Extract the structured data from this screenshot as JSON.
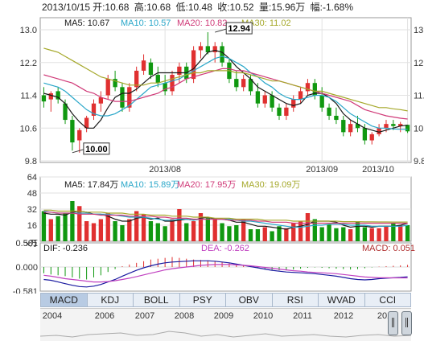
{
  "header": {
    "date": "2013/10/15",
    "open": "开:10.68",
    "high": "高:10.68",
    "low": "低:10.48",
    "close": "收:10.52",
    "volume": "量:15.96万",
    "change": "幅:-1.68%"
  },
  "tabs": [
    "MACD",
    "KDJ",
    "BOLL",
    "PSY",
    "OBV",
    "RSI",
    "WVAD",
    "CCI"
  ],
  "active_tab": "MACD",
  "timeline_years": [
    "2004",
    "2006",
    "2007",
    "2008",
    "2009",
    "2010",
    "2011",
    "2012",
    "201"
  ],
  "colors": {
    "up": "#e03030",
    "down": "#109810",
    "ma5": "#1a1a1a",
    "ma10": "#2aa7c9",
    "ma20": "#d03a78",
    "ma30": "#a5a82a",
    "dif": "#1a1aa0",
    "dea": "#c040c0"
  },
  "chart_data": [
    {
      "type": "candlestick",
      "title": "",
      "y_ticks_left": [
        "13.0",
        "12.2",
        "11.4",
        "10.6",
        "9.8"
      ],
      "y_ticks_right": [
        "13.0",
        "12.2",
        "11.4",
        "10.6",
        "9.8"
      ],
      "ylim": [
        9.8,
        13.0
      ],
      "x_tick_labels": [
        "2013/08",
        "2013/09",
        "2013/10"
      ],
      "legend": [
        {
          "name": "MA5",
          "value": "10.67"
        },
        {
          "name": "MA10",
          "value": "10.57"
        },
        {
          "name": "MA20",
          "value": "10.82"
        },
        {
          "name": "MA30",
          "value": "11.02"
        }
      ],
      "annotations": [
        {
          "label": "12.94",
          "x": 24,
          "y": 12.94
        },
        {
          "label": "10.00",
          "x": 4,
          "y": 10.0
        }
      ],
      "candles": [
        {
          "o": 11.4,
          "h": 11.6,
          "l": 11.1,
          "c": 11.25
        },
        {
          "o": 11.3,
          "h": 11.5,
          "l": 11.0,
          "c": 11.45
        },
        {
          "o": 11.5,
          "h": 11.6,
          "l": 11.2,
          "c": 11.3
        },
        {
          "o": 11.2,
          "h": 11.3,
          "l": 10.7,
          "c": 10.8
        },
        {
          "o": 10.8,
          "h": 10.9,
          "l": 10.05,
          "c": 10.25
        },
        {
          "o": 10.3,
          "h": 10.6,
          "l": 10.0,
          "c": 10.55
        },
        {
          "o": 10.6,
          "h": 10.9,
          "l": 10.5,
          "c": 10.85
        },
        {
          "o": 10.9,
          "h": 11.3,
          "l": 10.8,
          "c": 11.2
        },
        {
          "o": 11.2,
          "h": 11.5,
          "l": 11.0,
          "c": 11.35
        },
        {
          "o": 11.4,
          "h": 11.9,
          "l": 11.3,
          "c": 11.8
        },
        {
          "o": 11.8,
          "h": 12.0,
          "l": 11.5,
          "c": 11.6
        },
        {
          "o": 11.6,
          "h": 11.7,
          "l": 11.0,
          "c": 11.1
        },
        {
          "o": 11.1,
          "h": 11.7,
          "l": 11.0,
          "c": 11.6
        },
        {
          "o": 11.6,
          "h": 12.1,
          "l": 11.5,
          "c": 12.0
        },
        {
          "o": 12.0,
          "h": 12.4,
          "l": 11.9,
          "c": 12.25
        },
        {
          "o": 12.2,
          "h": 12.3,
          "l": 11.8,
          "c": 11.9
        },
        {
          "o": 11.9,
          "h": 12.1,
          "l": 11.6,
          "c": 11.7
        },
        {
          "o": 11.7,
          "h": 11.9,
          "l": 11.4,
          "c": 11.5
        },
        {
          "o": 11.5,
          "h": 12.0,
          "l": 11.4,
          "c": 11.9
        },
        {
          "o": 11.9,
          "h": 12.2,
          "l": 11.7,
          "c": 12.1
        },
        {
          "o": 12.1,
          "h": 12.2,
          "l": 11.7,
          "c": 11.8
        },
        {
          "o": 11.8,
          "h": 12.6,
          "l": 11.7,
          "c": 12.5
        },
        {
          "o": 12.5,
          "h": 12.7,
          "l": 12.3,
          "c": 12.6
        },
        {
          "o": 12.6,
          "h": 12.94,
          "l": 12.4,
          "c": 12.45
        },
        {
          "o": 12.45,
          "h": 12.7,
          "l": 12.2,
          "c": 12.6
        },
        {
          "o": 12.6,
          "h": 12.7,
          "l": 12.1,
          "c": 12.2
        },
        {
          "o": 12.2,
          "h": 12.3,
          "l": 11.7,
          "c": 11.8
        },
        {
          "o": 11.8,
          "h": 12.0,
          "l": 11.5,
          "c": 11.6
        },
        {
          "o": 11.6,
          "h": 11.9,
          "l": 11.5,
          "c": 11.8
        },
        {
          "o": 11.8,
          "h": 11.9,
          "l": 11.4,
          "c": 11.5
        },
        {
          "o": 11.5,
          "h": 11.7,
          "l": 11.1,
          "c": 11.2
        },
        {
          "o": 11.2,
          "h": 11.5,
          "l": 11.1,
          "c": 11.4
        },
        {
          "o": 11.4,
          "h": 11.5,
          "l": 11.0,
          "c": 11.1
        },
        {
          "o": 11.1,
          "h": 11.2,
          "l": 10.8,
          "c": 10.9
        },
        {
          "o": 10.9,
          "h": 11.2,
          "l": 10.8,
          "c": 11.1
        },
        {
          "o": 11.1,
          "h": 11.4,
          "l": 11.0,
          "c": 11.3
        },
        {
          "o": 11.3,
          "h": 11.6,
          "l": 11.2,
          "c": 11.5
        },
        {
          "o": 11.5,
          "h": 11.8,
          "l": 11.4,
          "c": 11.7
        },
        {
          "o": 11.7,
          "h": 11.8,
          "l": 11.3,
          "c": 11.4
        },
        {
          "o": 11.4,
          "h": 11.6,
          "l": 11.0,
          "c": 11.1
        },
        {
          "o": 11.1,
          "h": 11.2,
          "l": 10.8,
          "c": 10.9
        },
        {
          "o": 10.9,
          "h": 11.1,
          "l": 10.7,
          "c": 10.8
        },
        {
          "o": 10.8,
          "h": 10.9,
          "l": 10.4,
          "c": 10.5
        },
        {
          "o": 10.5,
          "h": 10.8,
          "l": 10.4,
          "c": 10.7
        },
        {
          "o": 10.7,
          "h": 10.9,
          "l": 10.5,
          "c": 10.6
        },
        {
          "o": 10.6,
          "h": 10.7,
          "l": 10.2,
          "c": 10.3
        },
        {
          "o": 10.3,
          "h": 10.5,
          "l": 10.2,
          "c": 10.45
        },
        {
          "o": 10.45,
          "h": 10.7,
          "l": 10.4,
          "c": 10.6
        },
        {
          "o": 10.6,
          "h": 10.8,
          "l": 10.5,
          "c": 10.7
        },
        {
          "o": 10.7,
          "h": 10.8,
          "l": 10.55,
          "c": 10.65
        },
        {
          "o": 10.65,
          "h": 10.75,
          "l": 10.5,
          "c": 10.7
        },
        {
          "o": 10.68,
          "h": 10.68,
          "l": 10.48,
          "c": 10.52
        }
      ],
      "ma_series": [
        {
          "name": "MA5",
          "values": [
            11.45,
            11.4,
            11.35,
            11.2,
            10.95,
            10.75,
            10.6,
            10.6,
            10.8,
            11.1,
            11.35,
            11.45,
            11.45,
            11.55,
            11.7,
            11.85,
            11.95,
            11.95,
            11.95,
            11.95,
            11.95,
            12.05,
            12.25,
            12.45,
            12.5,
            12.45,
            12.3,
            12.1,
            11.95,
            11.8,
            11.6,
            11.5,
            11.4,
            11.3,
            11.2,
            11.15,
            11.2,
            11.4,
            11.45,
            11.45,
            11.35,
            11.2,
            10.95,
            10.8,
            10.7,
            10.6,
            10.55,
            10.5,
            10.55,
            10.6,
            10.65,
            10.67
          ]
        },
        {
          "name": "MA10",
          "values": [
            11.7,
            11.65,
            11.6,
            11.5,
            11.35,
            11.2,
            11.05,
            10.95,
            10.9,
            10.9,
            10.95,
            11.05,
            11.15,
            11.3,
            11.45,
            11.6,
            11.65,
            11.7,
            11.75,
            11.8,
            11.9,
            12.0,
            12.1,
            12.2,
            12.3,
            12.35,
            12.3,
            12.2,
            12.1,
            11.95,
            11.85,
            11.7,
            11.6,
            11.45,
            11.35,
            11.3,
            11.3,
            11.35,
            11.4,
            11.4,
            11.35,
            11.25,
            11.1,
            10.95,
            10.85,
            10.75,
            10.65,
            10.6,
            10.6,
            10.58,
            10.57,
            10.57
          ]
        },
        {
          "name": "MA20",
          "values": [
            11.9,
            11.85,
            11.8,
            11.75,
            11.7,
            11.6,
            11.5,
            11.45,
            11.35,
            11.3,
            11.25,
            11.25,
            11.25,
            11.3,
            11.35,
            11.4,
            11.45,
            11.55,
            11.6,
            11.7,
            11.8,
            11.85,
            11.9,
            11.95,
            12.0,
            12.05,
            12.05,
            12.0,
            12.0,
            11.95,
            11.9,
            11.85,
            11.8,
            11.75,
            11.7,
            11.65,
            11.6,
            11.55,
            11.5,
            11.45,
            11.4,
            11.35,
            11.3,
            11.25,
            11.15,
            11.05,
            11.0,
            10.95,
            10.9,
            10.87,
            10.84,
            10.82
          ]
        },
        {
          "name": "MA30",
          "values": [
            12.55,
            12.5,
            12.45,
            12.35,
            12.25,
            12.15,
            12.05,
            11.95,
            11.85,
            11.8,
            11.75,
            11.7,
            11.65,
            11.65,
            11.65,
            11.7,
            11.7,
            11.75,
            11.8,
            11.85,
            11.9,
            11.95,
            11.95,
            12.0,
            12.0,
            12.0,
            12.0,
            11.95,
            11.95,
            11.9,
            11.85,
            11.8,
            11.75,
            11.75,
            11.7,
            11.65,
            11.6,
            11.55,
            11.5,
            11.5,
            11.45,
            11.4,
            11.35,
            11.3,
            11.25,
            11.2,
            11.15,
            11.1,
            11.1,
            11.07,
            11.05,
            11.02
          ]
        }
      ]
    },
    {
      "type": "bar",
      "title": "",
      "y_ticks": [
        "64",
        "48",
        "32",
        "16"
      ],
      "ylim": [
        0,
        64
      ],
      "unit_label": "x万",
      "legend": [
        {
          "name": "MA5",
          "value": "17.84万"
        },
        {
          "name": "MA10",
          "value": "15.89万"
        },
        {
          "name": "MA20",
          "value": "17.95万"
        },
        {
          "name": "MA30",
          "value": "19.09万"
        }
      ],
      "values": [
        30,
        22,
        25,
        28,
        40,
        35,
        20,
        18,
        22,
        28,
        20,
        16,
        22,
        30,
        27,
        20,
        18,
        15,
        22,
        32,
        18,
        20,
        28,
        24,
        22,
        18,
        15,
        16,
        22,
        12,
        12,
        14,
        10,
        15,
        13,
        18,
        20,
        28,
        22,
        14,
        17,
        13,
        14,
        12,
        20,
        14,
        13,
        13,
        15,
        18,
        16,
        16
      ],
      "ma_series": [
        {
          "name": "MA5",
          "values": [
            28,
            27,
            27,
            26,
            29,
            30,
            29,
            27,
            27,
            25,
            22,
            20,
            20,
            23,
            24,
            22,
            23,
            20,
            20,
            21,
            22,
            21,
            23,
            24,
            22,
            22,
            21,
            19,
            19,
            17,
            15,
            15,
            14,
            13,
            12,
            14,
            15,
            17,
            20,
            20,
            20,
            19,
            16,
            14,
            15,
            15,
            14,
            15,
            15,
            15,
            16,
            17.84
          ]
        },
        {
          "name": "MA10",
          "values": [
            30,
            29,
            28,
            28,
            28,
            28,
            28,
            27,
            27,
            27,
            26,
            25,
            24,
            24,
            24,
            23,
            22,
            21,
            21,
            22,
            22,
            21,
            22,
            22,
            22,
            22,
            22,
            21,
            20,
            20,
            19,
            18,
            17,
            16,
            15,
            14,
            14,
            15,
            16,
            16,
            17,
            17,
            17,
            16,
            16,
            16,
            15,
            15,
            15,
            15,
            15,
            15.89
          ]
        },
        {
          "name": "MA20",
          "values": [
            29,
            29,
            28,
            28,
            28,
            27,
            27,
            27,
            26,
            26,
            26,
            26,
            25,
            25,
            25,
            25,
            24,
            24,
            23,
            23,
            23,
            22,
            22,
            22,
            22,
            22,
            21,
            21,
            21,
            21,
            20,
            20,
            19,
            19,
            19,
            18,
            18,
            18,
            18,
            18,
            18,
            18,
            18,
            18,
            18,
            18,
            18,
            18,
            18,
            18,
            18,
            17.95
          ]
        },
        {
          "name": "MA30",
          "values": [
            31,
            31,
            30,
            30,
            30,
            30,
            29,
            29,
            29,
            28,
            28,
            28,
            27,
            27,
            27,
            26,
            26,
            26,
            25,
            25,
            25,
            24,
            24,
            24,
            23,
            23,
            23,
            22,
            22,
            22,
            22,
            21,
            21,
            21,
            21,
            20,
            20,
            20,
            20,
            20,
            20,
            20,
            19.5,
            19.5,
            19.5,
            19.3,
            19.3,
            19.2,
            19.2,
            19.1,
            19.1,
            19.09
          ]
        }
      ]
    },
    {
      "type": "macd",
      "title": "",
      "y_ticks": [
        "0.581",
        "0.000",
        "-0.581"
      ],
      "ylim": [
        -0.581,
        0.581
      ],
      "legend": [
        {
          "name": "DIF",
          "value": "-0.236"
        },
        {
          "name": "DEA",
          "value": "-0.262"
        },
        {
          "name": "MACD",
          "value": "0.051"
        }
      ],
      "histogram": [
        -0.15,
        -0.18,
        -0.2,
        -0.22,
        -0.25,
        -0.28,
        -0.3,
        -0.25,
        -0.2,
        -0.12,
        -0.05,
        0.02,
        0.06,
        0.1,
        0.14,
        0.18,
        0.2,
        0.22,
        0.24,
        0.22,
        0.2,
        0.18,
        0.17,
        0.16,
        0.14,
        0.12,
        0.09,
        0.06,
        0.03,
        0.0,
        -0.03,
        -0.05,
        -0.07,
        -0.08,
        -0.08,
        -0.06,
        -0.04,
        -0.02,
        -0.01,
        -0.02,
        -0.03,
        -0.04,
        -0.05,
        -0.06,
        -0.05,
        -0.03,
        -0.01,
        0.01,
        0.02,
        0.03,
        0.04,
        0.051
      ],
      "dif": [
        -0.3,
        -0.32,
        -0.36,
        -0.4,
        -0.44,
        -0.47,
        -0.48,
        -0.46,
        -0.42,
        -0.36,
        -0.3,
        -0.22,
        -0.15,
        -0.08,
        -0.02,
        0.03,
        0.07,
        0.1,
        0.12,
        0.13,
        0.14,
        0.15,
        0.15,
        0.15,
        0.14,
        0.12,
        0.1,
        0.07,
        0.04,
        0.01,
        -0.02,
        -0.05,
        -0.08,
        -0.1,
        -0.12,
        -0.13,
        -0.14,
        -0.15,
        -0.16,
        -0.18,
        -0.2,
        -0.22,
        -0.25,
        -0.28,
        -0.3,
        -0.31,
        -0.3,
        -0.28,
        -0.27,
        -0.26,
        -0.25,
        -0.236
      ],
      "dea": [
        -0.2,
        -0.22,
        -0.25,
        -0.28,
        -0.3,
        -0.32,
        -0.34,
        -0.36,
        -0.36,
        -0.35,
        -0.33,
        -0.3,
        -0.27,
        -0.23,
        -0.19,
        -0.15,
        -0.11,
        -0.07,
        -0.04,
        -0.02,
        0.0,
        0.02,
        0.04,
        0.05,
        0.06,
        0.06,
        0.06,
        0.05,
        0.04,
        0.03,
        0.01,
        -0.01,
        -0.03,
        -0.05,
        -0.07,
        -0.09,
        -0.1,
        -0.12,
        -0.13,
        -0.14,
        -0.15,
        -0.16,
        -0.18,
        -0.2,
        -0.22,
        -0.24,
        -0.25,
        -0.26,
        -0.26,
        -0.262,
        -0.262,
        -0.262
      ]
    }
  ]
}
